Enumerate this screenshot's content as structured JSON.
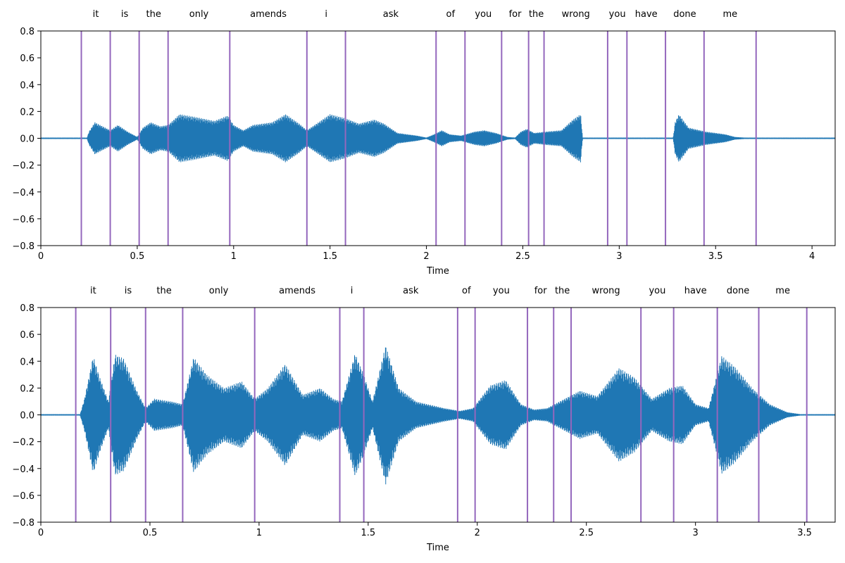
{
  "chart_data": [
    {
      "type": "waveform",
      "xlabel": "Time",
      "xlim": [
        0,
        4.12
      ],
      "ylim": [
        -0.8,
        0.8
      ],
      "x_ticks": [
        0,
        0.5,
        1,
        1.5,
        2,
        2.5,
        3,
        3.5,
        4
      ],
      "x_tick_labels": [
        "0",
        "0.5",
        "1",
        "1.5",
        "2",
        "2.5",
        "3",
        "3.5",
        "4"
      ],
      "y_ticks": [
        -0.8,
        -0.6,
        -0.4,
        -0.2,
        0.0,
        0.2,
        0.4,
        0.6,
        0.8
      ],
      "y_tick_labels": [
        "−0.8",
        "−0.6",
        "−0.4",
        "−0.2",
        "0.0",
        "0.2",
        "0.4",
        "0.6",
        "0.8"
      ],
      "waveform_color": "#1f77b4",
      "boundary_color": "#9467bd",
      "boundaries": [
        0.21,
        0.36,
        0.51,
        0.66,
        0.98,
        1.38,
        1.58,
        2.05,
        2.2,
        2.39,
        2.53,
        2.61,
        2.94,
        3.04,
        3.24,
        3.44,
        3.71
      ],
      "words": [
        "it",
        "is",
        "the",
        "only",
        "amends",
        "i",
        "ask",
        "of",
        "you",
        "for",
        "the",
        "wrong",
        "you",
        "have",
        "done",
        "me"
      ],
      "envelope": [
        [
          0.0,
          0.005
        ],
        [
          0.24,
          0.005
        ],
        [
          0.25,
          0.05
        ],
        [
          0.28,
          0.12
        ],
        [
          0.32,
          0.09
        ],
        [
          0.36,
          0.06
        ],
        [
          0.4,
          0.1
        ],
        [
          0.45,
          0.05
        ],
        [
          0.5,
          0.01
        ],
        [
          0.53,
          0.08
        ],
        [
          0.57,
          0.12
        ],
        [
          0.62,
          0.09
        ],
        [
          0.66,
          0.1
        ],
        [
          0.72,
          0.18
        ],
        [
          0.8,
          0.16
        ],
        [
          0.9,
          0.13
        ],
        [
          0.97,
          0.17
        ],
        [
          1.0,
          0.1
        ],
        [
          1.05,
          0.06
        ],
        [
          1.1,
          0.1
        ],
        [
          1.2,
          0.12
        ],
        [
          1.27,
          0.18
        ],
        [
          1.34,
          0.11
        ],
        [
          1.38,
          0.06
        ],
        [
          1.42,
          0.1
        ],
        [
          1.5,
          0.18
        ],
        [
          1.58,
          0.15
        ],
        [
          1.65,
          0.11
        ],
        [
          1.73,
          0.14
        ],
        [
          1.78,
          0.11
        ],
        [
          1.85,
          0.04
        ],
        [
          1.95,
          0.02
        ],
        [
          2.0,
          0.005
        ],
        [
          2.04,
          0.03
        ],
        [
          2.08,
          0.06
        ],
        [
          2.12,
          0.03
        ],
        [
          2.18,
          0.02
        ],
        [
          2.25,
          0.05
        ],
        [
          2.3,
          0.06
        ],
        [
          2.36,
          0.04
        ],
        [
          2.42,
          0.01
        ],
        [
          2.46,
          0.005
        ],
        [
          2.49,
          0.05
        ],
        [
          2.52,
          0.07
        ],
        [
          2.56,
          0.04
        ],
        [
          2.62,
          0.05
        ],
        [
          2.7,
          0.06
        ],
        [
          2.76,
          0.14
        ],
        [
          2.8,
          0.18
        ],
        [
          2.81,
          0.005
        ],
        [
          3.28,
          0.005
        ],
        [
          3.29,
          0.12
        ],
        [
          3.31,
          0.18
        ],
        [
          3.36,
          0.08
        ],
        [
          3.45,
          0.05
        ],
        [
          3.55,
          0.03
        ],
        [
          3.6,
          0.01
        ],
        [
          3.65,
          0.005
        ],
        [
          4.12,
          0.005
        ]
      ]
    },
    {
      "type": "waveform",
      "xlabel": "Time",
      "xlim": [
        0,
        3.64
      ],
      "ylim": [
        -0.8,
        0.8
      ],
      "x_ticks": [
        0,
        0.5,
        1,
        1.5,
        2,
        2.5,
        3,
        3.5
      ],
      "x_tick_labels": [
        "0",
        "0.5",
        "1",
        "1.5",
        "2",
        "2.5",
        "3",
        "3.5"
      ],
      "y_ticks": [
        -0.8,
        -0.6,
        -0.4,
        -0.2,
        0.0,
        0.2,
        0.4,
        0.6,
        0.8
      ],
      "y_tick_labels": [
        "−0.8",
        "−0.6",
        "−0.4",
        "−0.2",
        "0.0",
        "0.2",
        "0.4",
        "0.6",
        "0.8"
      ],
      "waveform_color": "#1f77b4",
      "boundary_color": "#9467bd",
      "boundaries": [
        0.16,
        0.32,
        0.48,
        0.65,
        0.98,
        1.37,
        1.48,
        1.91,
        1.99,
        2.23,
        2.35,
        2.43,
        2.75,
        2.9,
        3.1,
        3.29,
        3.51
      ],
      "words": [
        "it",
        "is",
        "the",
        "only",
        "amends",
        "i",
        "ask",
        "of",
        "you",
        "for",
        "the",
        "wrong",
        "you",
        "have",
        "done",
        "me"
      ],
      "envelope": [
        [
          0.0,
          0.005
        ],
        [
          0.18,
          0.005
        ],
        [
          0.2,
          0.12
        ],
        [
          0.24,
          0.44
        ],
        [
          0.27,
          0.28
        ],
        [
          0.31,
          0.1
        ],
        [
          0.34,
          0.45
        ],
        [
          0.38,
          0.42
        ],
        [
          0.44,
          0.18
        ],
        [
          0.48,
          0.05
        ],
        [
          0.52,
          0.12
        ],
        [
          0.6,
          0.1
        ],
        [
          0.65,
          0.08
        ],
        [
          0.7,
          0.43
        ],
        [
          0.76,
          0.3
        ],
        [
          0.84,
          0.2
        ],
        [
          0.92,
          0.25
        ],
        [
          0.98,
          0.12
        ],
        [
          1.04,
          0.2
        ],
        [
          1.12,
          0.38
        ],
        [
          1.2,
          0.15
        ],
        [
          1.28,
          0.2
        ],
        [
          1.34,
          0.12
        ],
        [
          1.38,
          0.1
        ],
        [
          1.44,
          0.46
        ],
        [
          1.48,
          0.3
        ],
        [
          1.52,
          0.1
        ],
        [
          1.58,
          0.52
        ],
        [
          1.64,
          0.2
        ],
        [
          1.72,
          0.1
        ],
        [
          1.85,
          0.05
        ],
        [
          1.92,
          0.03
        ],
        [
          1.98,
          0.05
        ],
        [
          2.06,
          0.22
        ],
        [
          2.13,
          0.26
        ],
        [
          2.2,
          0.08
        ],
        [
          2.26,
          0.04
        ],
        [
          2.32,
          0.05
        ],
        [
          2.4,
          0.12
        ],
        [
          2.47,
          0.18
        ],
        [
          2.55,
          0.14
        ],
        [
          2.65,
          0.35
        ],
        [
          2.72,
          0.28
        ],
        [
          2.8,
          0.12
        ],
        [
          2.88,
          0.2
        ],
        [
          2.94,
          0.22
        ],
        [
          3.0,
          0.08
        ],
        [
          3.06,
          0.05
        ],
        [
          3.12,
          0.44
        ],
        [
          3.18,
          0.36
        ],
        [
          3.26,
          0.2
        ],
        [
          3.34,
          0.08
        ],
        [
          3.42,
          0.02
        ],
        [
          3.48,
          0.005
        ],
        [
          3.64,
          0.005
        ]
      ]
    }
  ]
}
